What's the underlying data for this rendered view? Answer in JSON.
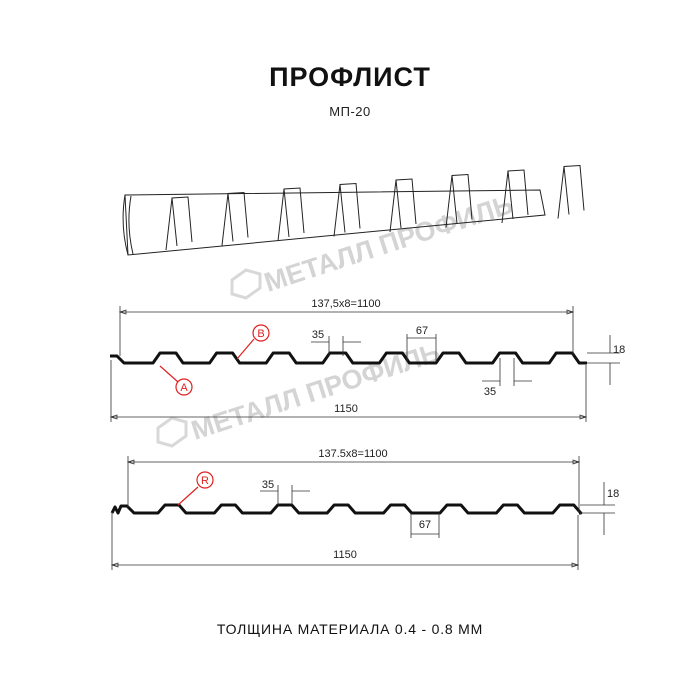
{
  "title": "ПРОФЛИСТ",
  "subtitle": "МП-20",
  "footer": "ТОЛЩИНА МАТЕРИАЛА 0.4 - 0.8 ММ",
  "watermark": "МЕТАЛЛ ПРОФИЛЬ",
  "profile_top": {
    "pitch_label": "137,5x8=1100",
    "top_width_label": "35",
    "bottom_width_label": "67",
    "bottom_width_label_2": "35",
    "height_label": "18",
    "total_width_label": "1150",
    "marker_a": "A",
    "marker_b": "B"
  },
  "profile_bottom": {
    "pitch_label": "137.5x8=1100",
    "top_width_label": "35",
    "bottom_width_label": "67",
    "height_label": "18",
    "total_width_label": "1150",
    "marker_r": "R"
  },
  "colors": {
    "profile": "#111111",
    "marker": "#e02020",
    "watermark": "#d4d4d4"
  }
}
